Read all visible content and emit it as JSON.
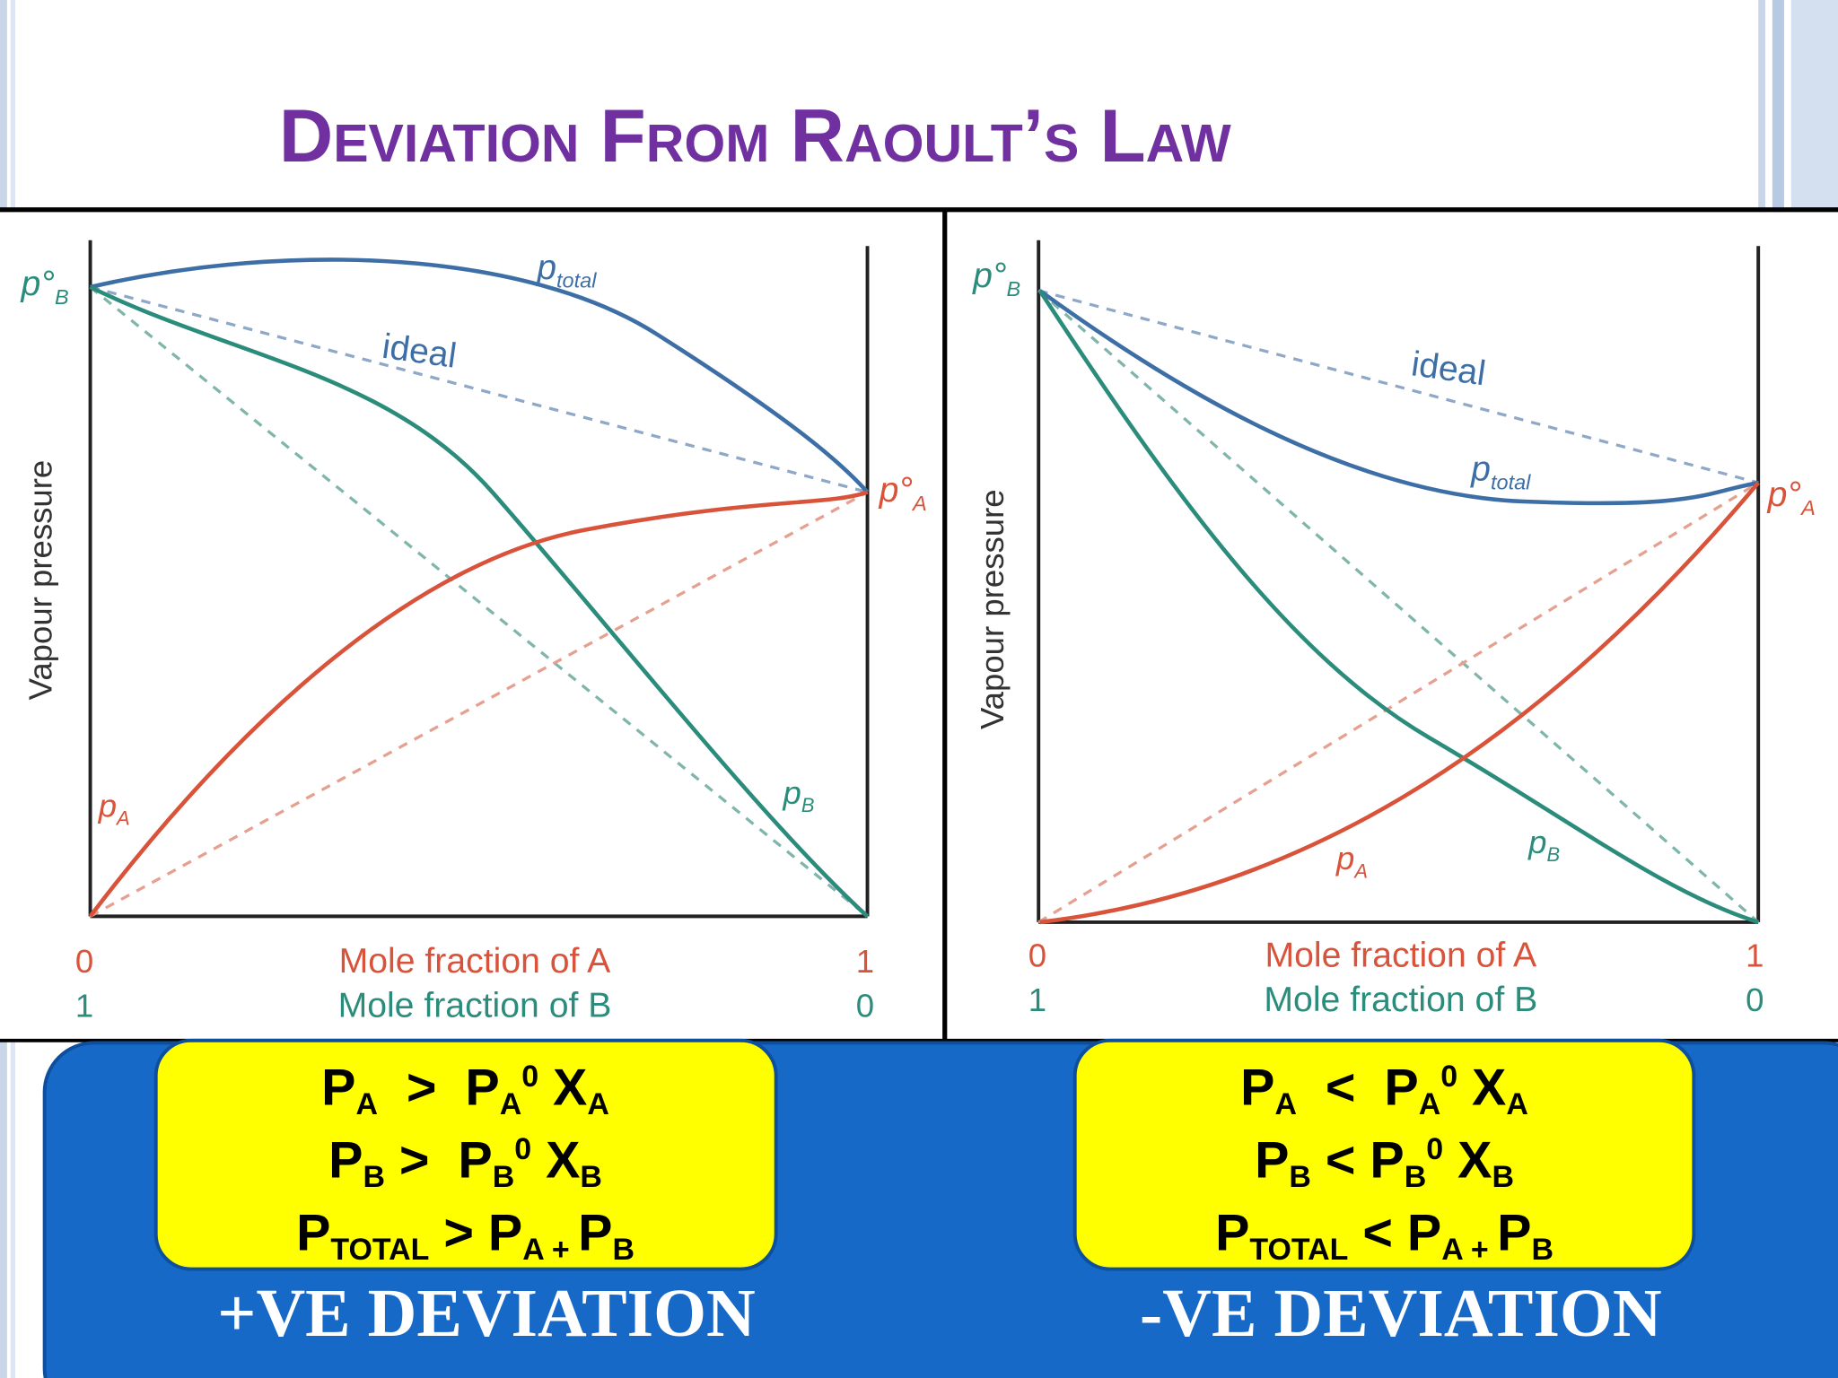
{
  "title": "Deviation From Raoult’s Law",
  "panels": [
    {
      "p0B": {
        "text": "p°",
        "sub": "B"
      },
      "p0A": {
        "text": "p°",
        "sub": "A"
      },
      "ptotal": {
        "text": "p",
        "sub": "total"
      },
      "ideal": "ideal",
      "pA": {
        "text": "p",
        "sub": "A"
      },
      "pB": {
        "text": "p",
        "sub": "B"
      },
      "y_axis": "Vapour pressure",
      "x_axis_a": {
        "start": "0",
        "label": "Mole fraction of A",
        "end": "1"
      },
      "x_axis_b": {
        "start": "1",
        "label": "Mole fraction of B",
        "end": "0"
      },
      "formulas": [
        [
          {
            "text": "P"
          },
          {
            "sub": "A"
          },
          {
            "text": "  >  P"
          },
          {
            "sub": "A"
          },
          {
            "sup": "0"
          },
          {
            "text": " X"
          },
          {
            "sub": "A"
          }
        ],
        [
          {
            "text": "P"
          },
          {
            "sub": "B"
          },
          {
            "text": " >  P"
          },
          {
            "sub": "B"
          },
          {
            "sup": "0"
          },
          {
            "text": " X"
          },
          {
            "sub": "B"
          }
        ],
        [
          {
            "text": "P"
          },
          {
            "sub": "TOTAL"
          },
          {
            "text": " > P"
          },
          {
            "sub": "A + "
          },
          {
            "text": "P"
          },
          {
            "sub": "B"
          }
        ]
      ],
      "caption": "+VE DEVIATION"
    },
    {
      "p0B": {
        "text": "p°",
        "sub": "B"
      },
      "p0A": {
        "text": "p°",
        "sub": "A"
      },
      "ptotal": {
        "text": "p",
        "sub": "total"
      },
      "ideal": "ideal",
      "pA": {
        "text": "p",
        "sub": "A"
      },
      "pB": {
        "text": "p",
        "sub": "B"
      },
      "y_axis": "Vapour pressure",
      "x_axis_a": {
        "start": "0",
        "label": "Mole fraction of A",
        "end": "1"
      },
      "x_axis_b": {
        "start": "1",
        "label": "Mole fraction of B",
        "end": "0"
      },
      "formulas": [
        [
          {
            "text": "P"
          },
          {
            "sub": "A"
          },
          {
            "text": "  <  P"
          },
          {
            "sub": "A"
          },
          {
            "sup": "0"
          },
          {
            "text": " X"
          },
          {
            "sub": "A"
          }
        ],
        [
          {
            "text": "P"
          },
          {
            "sub": "B"
          },
          {
            "text": " < P"
          },
          {
            "sub": "B"
          },
          {
            "sup": "0"
          },
          {
            "text": " X"
          },
          {
            "sub": "B"
          }
        ],
        [
          {
            "text": "P"
          },
          {
            "sub": "TOTAL"
          },
          {
            "text": " < P"
          },
          {
            "sub": "A + "
          },
          {
            "text": "P"
          },
          {
            "sub": "B"
          }
        ]
      ],
      "caption": "-VE DEVIATION"
    }
  ]
}
